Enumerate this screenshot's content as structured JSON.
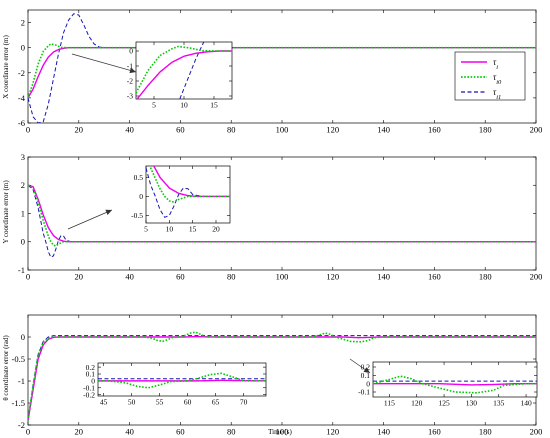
{
  "colors": {
    "tau_i": "#ee00ee",
    "tau_i0": "#00cc00",
    "tau_i1": "#1414b4",
    "axes": "#000000"
  },
  "chart_data": [
    {
      "type": "line",
      "title": "",
      "xlabel": "",
      "ylabel": "X coordinate error (m)",
      "xlim": [
        0,
        200
      ],
      "ylim": [
        -6,
        3
      ],
      "xticks": [
        0,
        20,
        40,
        60,
        80,
        100,
        120,
        140,
        160,
        180,
        200
      ],
      "yticks": [
        -6,
        -4,
        -2,
        0,
        2
      ],
      "grid": false,
      "legend": {
        "placement": "top-right",
        "entries": [
          "τ_i",
          "τ_i0",
          "τ_i1"
        ]
      },
      "series": [
        {
          "name": "τ_i",
          "line_style": "solid",
          "points": [
            [
              0,
              -4
            ],
            [
              2,
              -3.3
            ],
            [
              4,
              -2.3
            ],
            [
              6,
              -1.4
            ],
            [
              8,
              -0.75
            ],
            [
              10,
              -0.35
            ],
            [
              12,
              -0.15
            ],
            [
              14,
              -0.05
            ],
            [
              16,
              0
            ],
            [
              200,
              0
            ]
          ]
        },
        {
          "name": "τ_i0",
          "line_style": "dotted",
          "points": [
            [
              0,
              -4
            ],
            [
              2,
              -2.8
            ],
            [
              4,
              -1.3
            ],
            [
              6,
              -0.3
            ],
            [
              8,
              0.15
            ],
            [
              9,
              0.3
            ],
            [
              11,
              0.2
            ],
            [
              13,
              0.02
            ],
            [
              16,
              0
            ],
            [
              200,
              0
            ]
          ]
        },
        {
          "name": "τ_i1",
          "line_style": "dashed",
          "points": [
            [
              0,
              -4
            ],
            [
              2,
              -5.5
            ],
            [
              4,
              -6
            ],
            [
              6,
              -5.9
            ],
            [
              8,
              -4.5
            ],
            [
              10,
              -2.5
            ],
            [
              12,
              -0.5
            ],
            [
              14,
              1.2
            ],
            [
              16,
              2.2
            ],
            [
              18,
              2.7
            ],
            [
              20,
              2.6
            ],
            [
              22,
              1.8
            ],
            [
              24,
              0.9
            ],
            [
              26,
              0.3
            ],
            [
              28,
              0.05
            ],
            [
              30,
              0
            ],
            [
              200,
              0
            ]
          ]
        }
      ],
      "inset": {
        "xlim": [
          2,
          18
        ],
        "ylim": [
          -3.2,
          0.6
        ],
        "xticks": [
          5,
          10,
          15
        ],
        "yticks": [
          -3,
          -2,
          -1,
          0
        ],
        "points_from_main": true
      }
    },
    {
      "type": "line",
      "title": "",
      "xlabel": "",
      "ylabel": "Y coordinate error (m)",
      "xlim": [
        0,
        200
      ],
      "ylim": [
        -1,
        3
      ],
      "xticks": [
        0,
        20,
        40,
        60,
        80,
        100,
        120,
        140,
        160,
        180,
        200
      ],
      "yticks": [
        -1,
        0,
        1,
        2,
        3
      ],
      "grid": false,
      "series": [
        {
          "name": "τ_i",
          "line_style": "solid",
          "points": [
            [
              0,
              2
            ],
            [
              2,
              1.95
            ],
            [
              4,
              1.5
            ],
            [
              6,
              0.95
            ],
            [
              8,
              0.5
            ],
            [
              10,
              0.22
            ],
            [
              12,
              0.08
            ],
            [
              14,
              0.02
            ],
            [
              16,
              0
            ],
            [
              200,
              0
            ]
          ]
        },
        {
          "name": "τ_i0",
          "line_style": "dotted",
          "points": [
            [
              0,
              2
            ],
            [
              2,
              1.9
            ],
            [
              4,
              1.4
            ],
            [
              6,
              0.75
            ],
            [
              8,
              0.2
            ],
            [
              9,
              0
            ],
            [
              10,
              -0.12
            ],
            [
              11,
              -0.15
            ],
            [
              12,
              -0.08
            ],
            [
              14,
              0
            ],
            [
              200,
              0
            ]
          ]
        },
        {
          "name": "τ_i1",
          "line_style": "dashed",
          "points": [
            [
              0,
              2
            ],
            [
              2,
              1.85
            ],
            [
              4,
              1.2
            ],
            [
              6,
              0.3
            ],
            [
              7,
              0
            ],
            [
              8,
              -0.35
            ],
            [
              9,
              -0.55
            ],
            [
              10,
              -0.5
            ],
            [
              11,
              -0.25
            ],
            [
              12,
              0.05
            ],
            [
              13,
              0.22
            ],
            [
              14,
              0.2
            ],
            [
              15,
              0.05
            ],
            [
              17,
              0
            ],
            [
              200,
              0
            ]
          ]
        }
      ],
      "inset": {
        "xlim": [
          5,
          23
        ],
        "ylim": [
          -0.7,
          0.8
        ],
        "xticks": [
          5,
          10,
          15,
          20
        ],
        "yticks": [
          -0.5,
          0,
          0.5
        ],
        "points_from_main": true
      }
    },
    {
      "type": "line",
      "title": "",
      "xlabel": "Time (s)",
      "ylabel": "θ coordinate error (rad)",
      "xlim": [
        0,
        200
      ],
      "ylim": [
        -2,
        0.5
      ],
      "xticks": [
        0,
        20,
        40,
        60,
        80,
        100,
        120,
        140,
        160,
        180,
        200
      ],
      "yticks": [
        -2,
        -1.5,
        -1,
        -0.5,
        0
      ],
      "grid": false,
      "series": [
        {
          "name": "τ_i",
          "line_style": "solid",
          "points": [
            [
              0,
              -1.9
            ],
            [
              2,
              -1.2
            ],
            [
              4,
              -0.5
            ],
            [
              6,
              -0.18
            ],
            [
              8,
              -0.05
            ],
            [
              10,
              -0.01
            ],
            [
              12,
              0
            ],
            [
              62,
              0
            ],
            [
              66,
              0.008
            ],
            [
              70,
              0.003
            ],
            [
              74,
              0
            ],
            [
              124,
              0
            ],
            [
              130,
              -0.015
            ],
            [
              134,
              -0.01
            ],
            [
              138,
              0
            ],
            [
              200,
              0
            ]
          ]
        },
        {
          "name": "τ_i0",
          "line_style": "dotted",
          "points": [
            [
              0,
              -1.9
            ],
            [
              2,
              -1.1
            ],
            [
              4,
              -0.4
            ],
            [
              6,
              -0.12
            ],
            [
              8,
              -0.03
            ],
            [
              10,
              0
            ],
            [
              46,
              0
            ],
            [
              49,
              -0.03
            ],
            [
              51,
              -0.08
            ],
            [
              53,
              -0.1
            ],
            [
              55,
              -0.06
            ],
            [
              57,
              -0.01
            ],
            [
              60,
              0
            ],
            [
              62,
              0.04
            ],
            [
              64,
              0.09
            ],
            [
              66,
              0.11
            ],
            [
              68,
              0.06
            ],
            [
              70,
              0
            ],
            [
              112,
              0
            ],
            [
              115,
              0.05
            ],
            [
              117,
              0.09
            ],
            [
              119,
              0.06
            ],
            [
              121,
              0
            ],
            [
              124,
              -0.05
            ],
            [
              127,
              -0.1
            ],
            [
              131,
              -0.11
            ],
            [
              134,
              -0.08
            ],
            [
              136,
              -0.02
            ],
            [
              140,
              0
            ],
            [
              200,
              0
            ]
          ]
        },
        {
          "name": "τ_i1",
          "line_style": "dashed",
          "points": [
            [
              0,
              -1.9
            ],
            [
              2,
              -1.1
            ],
            [
              4,
              -0.4
            ],
            [
              6,
              -0.1
            ],
            [
              8,
              0
            ],
            [
              10,
              0.03
            ],
            [
              200,
              0.03
            ]
          ]
        }
      ],
      "insets": [
        {
          "xlim": [
            44,
            74
          ],
          "ylim": [
            -0.22,
            0.26
          ],
          "xticks": [
            45,
            50,
            55,
            60,
            65,
            70
          ],
          "yticks": [
            -0.2,
            -0.1,
            0,
            0.1,
            0.2
          ],
          "points_from_main": true
        },
        {
          "xlim": [
            112,
            142
          ],
          "ylim": [
            -0.16,
            0.26
          ],
          "xticks": [
            115,
            120,
            125,
            130,
            135,
            140
          ],
          "yticks": [
            -0.1,
            0,
            0.1,
            0.2
          ],
          "points_from_main": true
        }
      ]
    }
  ]
}
